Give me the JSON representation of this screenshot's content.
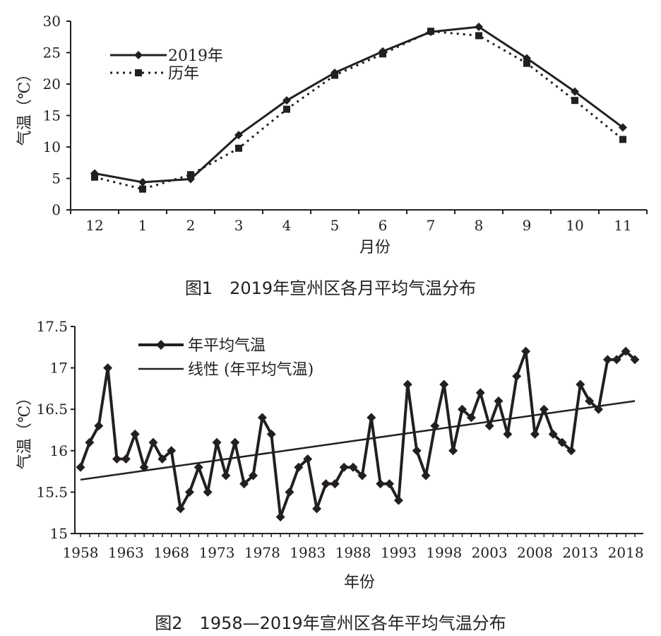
{
  "chart_data": [
    {
      "type": "line",
      "caption": "图1　2019年宣州区各月平均气温分布",
      "xlabel": "月份",
      "ylabel": "气温（℃）",
      "categories": [
        "12",
        "1",
        "2",
        "3",
        "4",
        "5",
        "6",
        "7",
        "8",
        "9",
        "10",
        "11"
      ],
      "ylim": [
        0,
        30
      ],
      "yticks": [
        "0",
        "5",
        "10",
        "15",
        "20",
        "25",
        "30"
      ],
      "legend_position": "top-left",
      "series": [
        {
          "name": "2019年",
          "style": "solid",
          "marker": "diamond",
          "values": [
            5.8,
            4.4,
            4.9,
            11.9,
            17.4,
            21.8,
            25.2,
            28.3,
            29.1,
            24.1,
            18.8,
            13.1
          ]
        },
        {
          "name": "历年",
          "style": "dotted",
          "marker": "square",
          "values": [
            5.2,
            3.3,
            5.6,
            9.8,
            16.0,
            21.4,
            24.8,
            28.4,
            27.7,
            23.3,
            17.4,
            11.2
          ]
        }
      ]
    },
    {
      "type": "line",
      "caption": "图2　1958—2019年宣州区各年平均气温分布",
      "xlabel": "年份",
      "ylabel": "气温（℃）",
      "x": [
        1958,
        1959,
        1960,
        1961,
        1962,
        1963,
        1964,
        1965,
        1966,
        1967,
        1968,
        1969,
        1970,
        1971,
        1972,
        1973,
        1974,
        1975,
        1976,
        1977,
        1978,
        1979,
        1980,
        1981,
        1982,
        1983,
        1984,
        1985,
        1986,
        1987,
        1988,
        1989,
        1990,
        1991,
        1992,
        1993,
        1994,
        1995,
        1996,
        1997,
        1998,
        1999,
        2000,
        2001,
        2002,
        2003,
        2004,
        2005,
        2006,
        2007,
        2008,
        2009,
        2010,
        2011,
        2012,
        2013,
        2014,
        2015,
        2016,
        2017,
        2018,
        2019
      ],
      "xticks": [
        "1958",
        "1963",
        "1968",
        "1973",
        "1978",
        "1983",
        "1988",
        "1993",
        "1998",
        "2003",
        "2008",
        "2013",
        "2018"
      ],
      "ylim": [
        15,
        17.5
      ],
      "yticks": [
        "15",
        "15.5",
        "16",
        "16.5",
        "17",
        "17.5"
      ],
      "legend_position": "top-left",
      "series": [
        {
          "name": "年平均气温",
          "style": "solid",
          "marker": "diamond",
          "values": [
            15.8,
            16.1,
            16.3,
            17.0,
            15.9,
            15.9,
            16.2,
            15.8,
            16.1,
            15.9,
            16.0,
            15.3,
            15.5,
            15.8,
            15.5,
            16.1,
            15.7,
            16.1,
            15.6,
            15.7,
            16.4,
            16.2,
            15.2,
            15.5,
            15.8,
            15.9,
            15.3,
            15.6,
            15.6,
            15.8,
            15.8,
            15.7,
            16.4,
            15.6,
            15.6,
            15.4,
            16.8,
            16.0,
            15.7,
            16.3,
            16.8,
            16.0,
            16.5,
            16.4,
            16.7,
            16.3,
            16.6,
            16.2,
            16.9,
            17.2,
            16.2,
            16.5,
            16.2,
            16.1,
            16.0,
            16.8,
            16.6,
            16.5,
            17.1,
            17.1,
            17.2,
            17.1
          ]
        },
        {
          "name": "线性 (年平均气温)",
          "style": "solid",
          "marker": "none",
          "trend": [
            15.65,
            16.6
          ]
        }
      ]
    }
  ]
}
